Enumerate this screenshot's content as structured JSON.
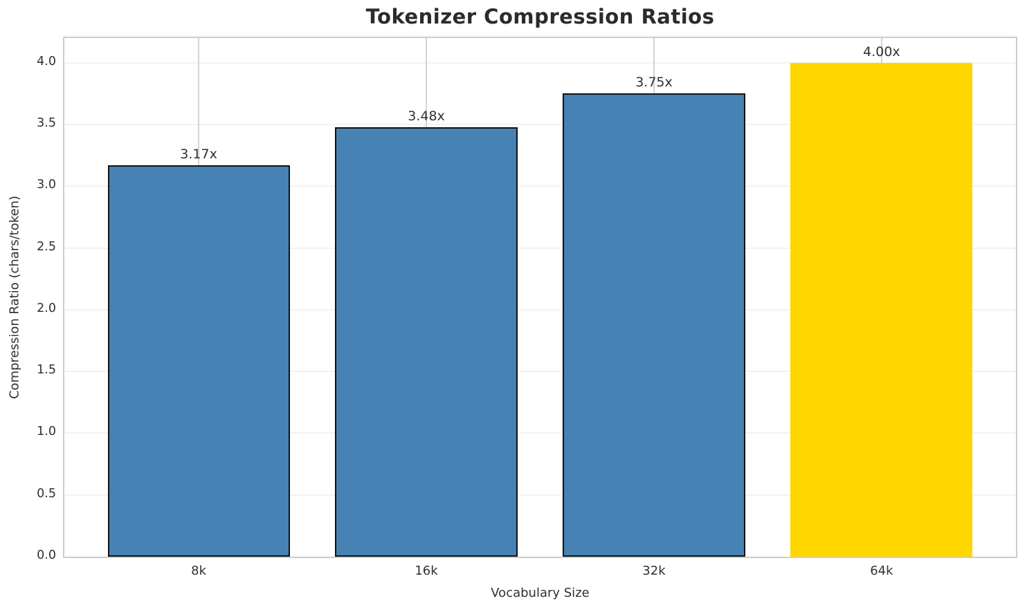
{
  "chart_data": {
    "type": "bar",
    "title": "Tokenizer Compression Ratios",
    "xlabel": "Vocabulary Size",
    "ylabel": "Compression Ratio (chars/token)",
    "categories": [
      "8k",
      "16k",
      "32k",
      "64k"
    ],
    "values": [
      3.17,
      3.48,
      3.75,
      4.0
    ],
    "annotations": [
      "3.17x",
      "3.48x",
      "3.75x",
      "4.00x"
    ],
    "bar_colors": [
      "#4682B4",
      "#4682B4",
      "#4682B4",
      "#FFD700"
    ],
    "bar_edge_colors": [
      "#111111",
      "#111111",
      "#111111",
      "none"
    ],
    "ylim": [
      0,
      4.2
    ],
    "yticks": [
      0.0,
      0.5,
      1.0,
      1.5,
      2.0,
      2.5,
      3.0,
      3.5,
      4.0
    ],
    "ytick_labels": [
      "0.0",
      "0.5",
      "1.0",
      "1.5",
      "2.0",
      "2.5",
      "3.0",
      "3.5",
      "4.0"
    ],
    "grid": true,
    "legend_position": "none",
    "bar_width_units": 0.8
  },
  "colors": {
    "bar": "#4682B4",
    "highlight": "#FFD700",
    "bar_edge": "#111111",
    "horizontal_grid": "#f2f2f2",
    "vertical_grid": "#d4d4d4",
    "spine": "#cccccc",
    "text": "#303030",
    "title": "#2b2b2b",
    "background": "#ffffff"
  }
}
